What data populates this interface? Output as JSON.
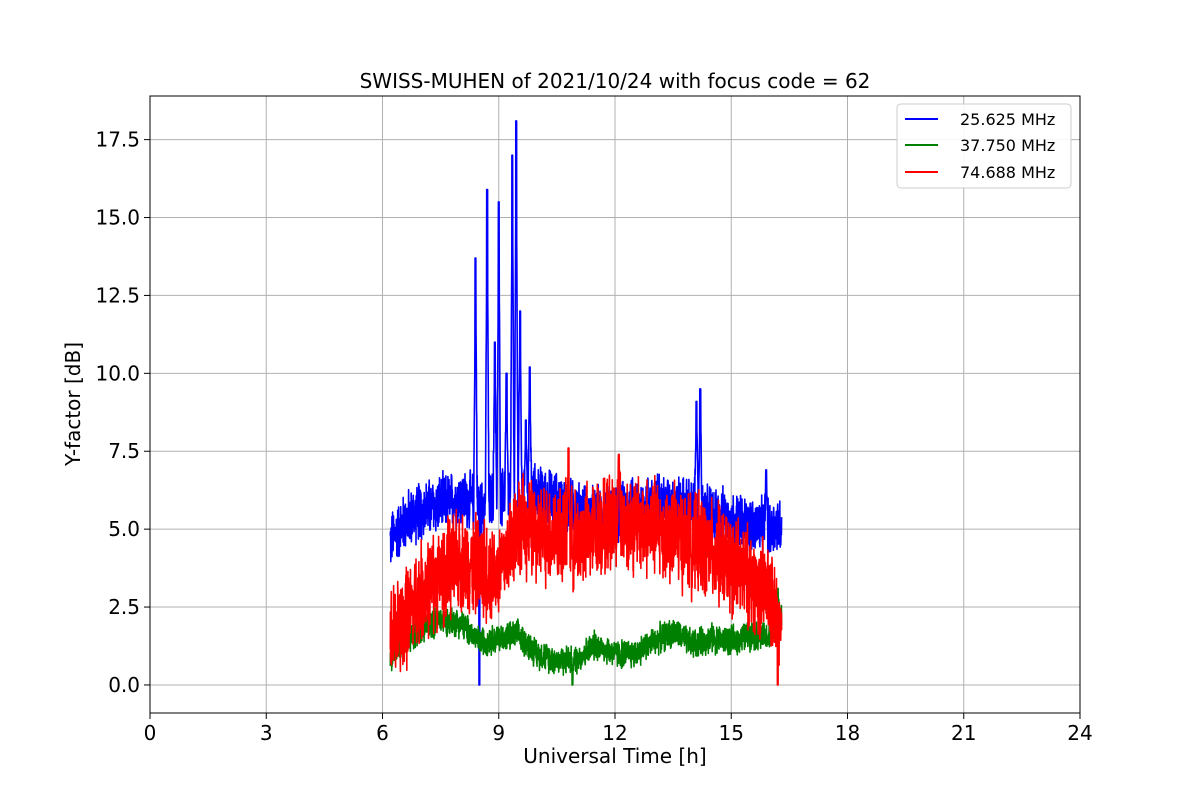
{
  "chart_data": {
    "type": "line",
    "title": "SWISS-MUHEN of 2021/10/24 with focus code = 62",
    "xlabel": "Universal Time [h]",
    "ylabel": "Y-factor [dB]",
    "xlim": [
      0,
      24
    ],
    "ylim": [
      -0.9,
      18.9
    ],
    "xticks": [
      0,
      3,
      6,
      9,
      12,
      15,
      18,
      21,
      24
    ],
    "xtick_labels": [
      "0",
      "3",
      "6",
      "9",
      "12",
      "15",
      "18",
      "21",
      "24"
    ],
    "yticks": [
      0,
      2.5,
      5,
      7.5,
      10,
      12.5,
      15,
      17.5
    ],
    "ytick_labels": [
      "0.0",
      "2.5",
      "5.0",
      "7.5",
      "10.0",
      "12.5",
      "15.0",
      "17.5"
    ],
    "grid": true,
    "legend_position": "top-right",
    "x_range": [
      6.2,
      16.3
    ],
    "series": [
      {
        "name": "25.625 MHz",
        "color": "#0000ff",
        "baseline": [
          [
            6.2,
            4.6
          ],
          [
            6.6,
            5.3
          ],
          [
            7.0,
            5.6
          ],
          [
            7.5,
            5.8
          ],
          [
            8.0,
            6.0
          ],
          [
            8.5,
            5.8
          ],
          [
            9.0,
            6.0
          ],
          [
            9.5,
            6.3
          ],
          [
            10.0,
            6.1
          ],
          [
            10.5,
            5.9
          ],
          [
            11.0,
            5.6
          ],
          [
            11.5,
            5.4
          ],
          [
            12.0,
            5.5
          ],
          [
            12.5,
            5.7
          ],
          [
            13.0,
            5.9
          ],
          [
            13.5,
            5.8
          ],
          [
            14.0,
            5.7
          ],
          [
            14.5,
            5.5
          ],
          [
            15.0,
            5.3
          ],
          [
            15.5,
            5.1
          ],
          [
            16.0,
            5.0
          ],
          [
            16.3,
            5.2
          ]
        ],
        "noise": 1.1,
        "peaks": [
          [
            8.4,
            13.7
          ],
          [
            8.5,
            0.0
          ],
          [
            8.7,
            15.9
          ],
          [
            8.9,
            11.0
          ],
          [
            9.0,
            15.5
          ],
          [
            9.2,
            10.0
          ],
          [
            9.35,
            17.0
          ],
          [
            9.45,
            18.1
          ],
          [
            9.55,
            12.0
          ],
          [
            9.7,
            8.5
          ],
          [
            9.8,
            10.2
          ],
          [
            14.1,
            9.1
          ],
          [
            14.2,
            9.5
          ],
          [
            15.9,
            6.9
          ]
        ]
      },
      {
        "name": "37.750 MHz",
        "color": "#008000",
        "baseline": [
          [
            6.2,
            0.9
          ],
          [
            6.6,
            1.4
          ],
          [
            7.0,
            1.8
          ],
          [
            7.5,
            2.1
          ],
          [
            8.0,
            2.0
          ],
          [
            8.5,
            1.4
          ],
          [
            9.0,
            1.5
          ],
          [
            9.5,
            1.6
          ],
          [
            10.0,
            1.0
          ],
          [
            10.5,
            0.8
          ],
          [
            11.0,
            0.8
          ],
          [
            11.5,
            1.3
          ],
          [
            12.0,
            1.0
          ],
          [
            12.5,
            1.0
          ],
          [
            13.0,
            1.4
          ],
          [
            13.5,
            1.7
          ],
          [
            14.0,
            1.3
          ],
          [
            14.5,
            1.5
          ],
          [
            15.0,
            1.4
          ],
          [
            15.5,
            1.6
          ],
          [
            16.0,
            1.5
          ],
          [
            16.3,
            2.3
          ]
        ],
        "noise": 0.55,
        "peaks": [
          [
            16.2,
            3.1
          ],
          [
            10.9,
            0.0
          ]
        ]
      },
      {
        "name": "74.688 MHz",
        "color": "#ff0000",
        "baseline": [
          [
            6.2,
            1.5
          ],
          [
            6.6,
            2.1
          ],
          [
            7.0,
            3.0
          ],
          [
            7.5,
            3.5
          ],
          [
            8.0,
            4.0
          ],
          [
            8.5,
            3.8
          ],
          [
            9.0,
            3.6
          ],
          [
            9.5,
            5.2
          ],
          [
            10.0,
            4.8
          ],
          [
            10.5,
            4.9
          ],
          [
            11.0,
            4.6
          ],
          [
            11.5,
            5.0
          ],
          [
            12.0,
            5.3
          ],
          [
            12.5,
            5.2
          ],
          [
            13.0,
            5.0
          ],
          [
            13.5,
            4.9
          ],
          [
            14.0,
            4.5
          ],
          [
            14.5,
            4.3
          ],
          [
            15.0,
            3.9
          ],
          [
            15.5,
            3.4
          ],
          [
            16.0,
            2.8
          ],
          [
            16.3,
            1.4
          ]
        ],
        "noise": 1.9,
        "peaks": [
          [
            10.8,
            7.6
          ],
          [
            12.1,
            7.4
          ],
          [
            16.2,
            0.0
          ]
        ]
      }
    ]
  }
}
